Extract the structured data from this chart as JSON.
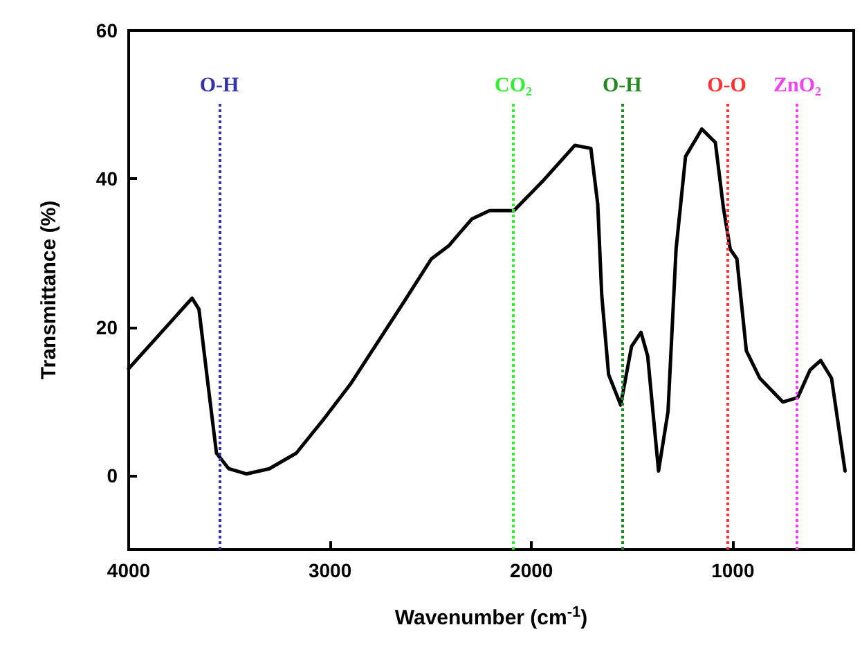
{
  "chart_data": {
    "type": "line",
    "xlabel": "Wavenumber (cm$^{-1}$)",
    "ylabel": "Transmittance (%)",
    "xlim": [
      4000,
      400
    ],
    "xticks": [
      4000,
      3000,
      2000,
      1000
    ],
    "ylim": [
      -10,
      60
    ],
    "yticks": [
      0,
      20,
      40,
      60
    ],
    "grid": false,
    "marker": "none",
    "line_style": "solid",
    "series": [
      {
        "color": "#000000",
        "x": [
          4000,
          3685,
          3651,
          3604,
          3564,
          3503,
          3416,
          3302,
          3168,
          3034,
          2899,
          2765,
          2631,
          2497,
          2409,
          2356,
          2295,
          2208,
          2161,
          2087,
          1940,
          1785,
          1705,
          1671,
          1651,
          1617,
          1557,
          1503,
          1456,
          1423,
          1369,
          1322,
          1282,
          1235,
          1154,
          1087,
          1047,
          1013,
          980,
          933,
          866,
          752,
          678,
          617,
          564,
          510,
          443
        ],
        "values": [
          14.4,
          23.9,
          22.4,
          11.8,
          3.0,
          0.9,
          0.2,
          0.9,
          3.0,
          7.5,
          12.3,
          17.9,
          23.5,
          29.2,
          31.0,
          32.7,
          34.6,
          35.7,
          35.7,
          35.7,
          39.8,
          44.5,
          44.1,
          36.6,
          24.3,
          13.6,
          9.5,
          17.4,
          19.3,
          16.1,
          0.6,
          8.6,
          30.5,
          43.0,
          46.7,
          44.9,
          36.1,
          30.5,
          29.2,
          16.8,
          13.1,
          9.9,
          10.5,
          14.2,
          15.5,
          13.1,
          0.6
        ]
      }
    ],
    "ref_lines": [
      {
        "axis": "x",
        "value": 3550,
        "label": "O-H",
        "color": "#3333aa",
        "line_style": "dotted"
      },
      {
        "axis": "x",
        "value": 2090,
        "label": "CO₂",
        "color": "#33ee33",
        "line_style": "dotted"
      },
      {
        "axis": "x",
        "value": 1550,
        "label": "O-H",
        "color": "#228822",
        "line_style": "dotted"
      },
      {
        "axis": "x",
        "value": 1030,
        "label": "O-O",
        "color": "#ff3333",
        "line_style": "dotted"
      },
      {
        "axis": "x",
        "value": 680,
        "label": "ZnO₂",
        "color": "#ee44ee",
        "line_style": "dotted"
      }
    ]
  }
}
